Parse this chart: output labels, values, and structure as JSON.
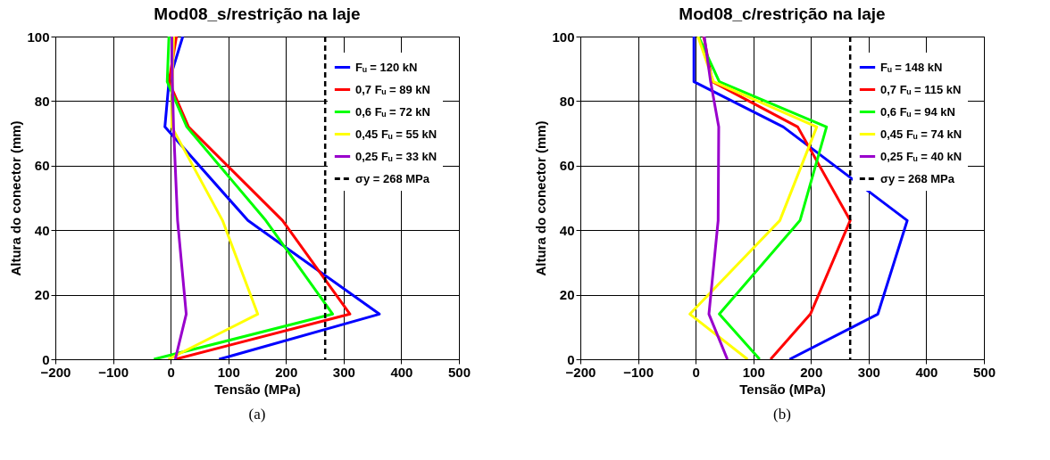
{
  "chart_data": [
    {
      "type": "line",
      "title": "Mod08_s/restrição na laje",
      "xlabel": "Tensão (MPa)",
      "ylabel": "Altura do conector (mm)",
      "xlim": [
        -200,
        500
      ],
      "xticks": [
        -200,
        -100,
        0,
        100,
        200,
        300,
        400,
        500
      ],
      "ylim": [
        0,
        100
      ],
      "yticks": [
        0,
        20,
        40,
        60,
        80,
        100
      ],
      "grid": true,
      "legend": "top right",
      "marker": "none",
      "line_style": "solid",
      "annotations": [
        "(a)"
      ],
      "ref_lines": [
        {
          "axis": "x",
          "value": 268,
          "label": "σy = 268 MPa",
          "color": "#000000",
          "line_style": "dashed"
        }
      ],
      "series": [
        {
          "name": "Fᵤ = 120 kN",
          "color": "#0000ff",
          "x": [
            84,
            362,
            134,
            -10,
            -3,
            21
          ],
          "values": [
            0,
            14,
            43,
            72,
            86,
            100
          ]
        },
        {
          "name": "0,7 Fᵤ = 89 kN",
          "color": "#ff0000",
          "x": [
            8,
            311,
            194,
            31,
            -3,
            10
          ],
          "values": [
            0,
            14,
            43,
            72,
            86,
            100
          ]
        },
        {
          "name": "0,6 Fᵤ = 72 kN",
          "color": "#00ff00",
          "x": [
            -29,
            281,
            165,
            28,
            -6,
            -3
          ],
          "values": [
            0,
            14,
            43,
            72,
            86,
            100
          ]
        },
        {
          "name": "0,45 Fᵤ = 55 kN",
          "color": "#ffff00",
          "x": [
            -4,
            151,
            90,
            2,
            3,
            5
          ],
          "values": [
            0,
            14,
            43,
            72,
            86,
            100
          ]
        },
        {
          "name": "0,25 Fᵤ = 33 kN",
          "color": "#9900cc",
          "x": [
            8,
            27,
            12,
            5,
            3,
            2
          ],
          "values": [
            0,
            14,
            43,
            72,
            86,
            100
          ]
        }
      ]
    },
    {
      "type": "line",
      "title": "Mod08_c/restrição na laje",
      "xlabel": "Tensão (MPa)",
      "ylabel": "Altura do conector (mm)",
      "xlim": [
        -200,
        500
      ],
      "xticks": [
        -200,
        -100,
        0,
        100,
        200,
        300,
        400,
        500
      ],
      "ylim": [
        0,
        100
      ],
      "yticks": [
        0,
        20,
        40,
        60,
        80,
        100
      ],
      "grid": true,
      "legend": "top right",
      "marker": "none",
      "line_style": "solid",
      "annotations": [
        "(b)"
      ],
      "ref_lines": [
        {
          "axis": "x",
          "value": 268,
          "label": "σy = 268 MPa",
          "color": "#000000",
          "line_style": "dashed"
        }
      ],
      "series": [
        {
          "name": "Fᵤ = 148 kN",
          "color": "#0000ff",
          "x": [
            163,
            316,
            367,
            152,
            -3,
            -3
          ],
          "values": [
            0,
            14,
            43,
            72,
            86,
            100
          ]
        },
        {
          "name": "0,7 Fᵤ = 115 kN",
          "color": "#ff0000",
          "x": [
            130,
            199,
            268,
            177,
            29,
            14
          ],
          "values": [
            0,
            14,
            43,
            72,
            86,
            100
          ]
        },
        {
          "name": "0,6 Fᵤ = 94 kN",
          "color": "#00ff00",
          "x": [
            111,
            41,
            181,
            227,
            41,
            5
          ],
          "values": [
            0,
            14,
            43,
            72,
            86,
            100
          ]
        },
        {
          "name": "0,45 Fᵤ = 74 kN",
          "color": "#ffff00",
          "x": [
            90,
            -10,
            146,
            210,
            31,
            4
          ],
          "values": [
            0,
            14,
            43,
            72,
            86,
            100
          ]
        },
        {
          "name": "0,25 Fᵤ = 40 kN",
          "color": "#9900cc",
          "x": [
            55,
            23,
            39,
            40,
            26,
            15
          ],
          "values": [
            0,
            14,
            43,
            72,
            86,
            100
          ]
        }
      ]
    }
  ]
}
